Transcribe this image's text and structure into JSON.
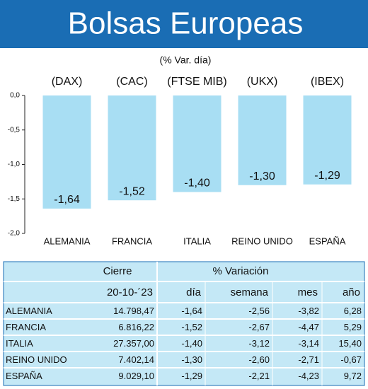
{
  "chart_data": {
    "type": "bar",
    "title": "Bolsas Europeas",
    "subtitle": "(% Var. día)",
    "indices": [
      "(DAX)",
      "(CAC)",
      "(FTSE MIB)",
      "(UKX)",
      "(IBEX)"
    ],
    "categories": [
      "ALEMANIA",
      "FRANCIA",
      "ITALIA",
      "REINO UNIDO",
      "ESPAÑA"
    ],
    "values": [
      -1.64,
      -1.52,
      -1.4,
      -1.3,
      -1.29
    ],
    "value_labels": [
      "-1,64",
      "-1,52",
      "-1,40",
      "-1,30",
      "-1,29"
    ],
    "color": "#a8def3",
    "ylim": [
      -2.0,
      0.0
    ],
    "yticks": [
      {
        "value": 0,
        "label": "0,0"
      },
      {
        "value": -0.5,
        "label": "-0,5"
      },
      {
        "value": -1.0,
        "label": "-1,0"
      },
      {
        "value": -1.5,
        "label": "-1,5"
      },
      {
        "value": -2.0,
        "label": "-2,0"
      }
    ],
    "grid": false
  },
  "table": {
    "header": [
      "Cierre",
      "% Variación"
    ],
    "subheader": [
      "20-10-´23",
      "día",
      "semana",
      "mes",
      "año"
    ],
    "rows": [
      [
        "ALEMANIA",
        "14.798,47",
        "-1,64",
        "-2,56",
        "-3,82",
        "6,28"
      ],
      [
        "FRANCIA",
        "6.816,22",
        "-1,52",
        "-2,67",
        "-4,47",
        "5,29"
      ],
      [
        "ITALIA",
        "27.357,00",
        "-1,40",
        "-3,12",
        "-3,14",
        "15,40"
      ],
      [
        "REINO UNIDO",
        "7.402,14",
        "-1,30",
        "-2,60",
        "-2,71",
        "-0,67"
      ],
      [
        "ESPAÑA",
        "9.029,10",
        "-1,29",
        "-2,21",
        "-4,23",
        "9,72"
      ]
    ]
  }
}
